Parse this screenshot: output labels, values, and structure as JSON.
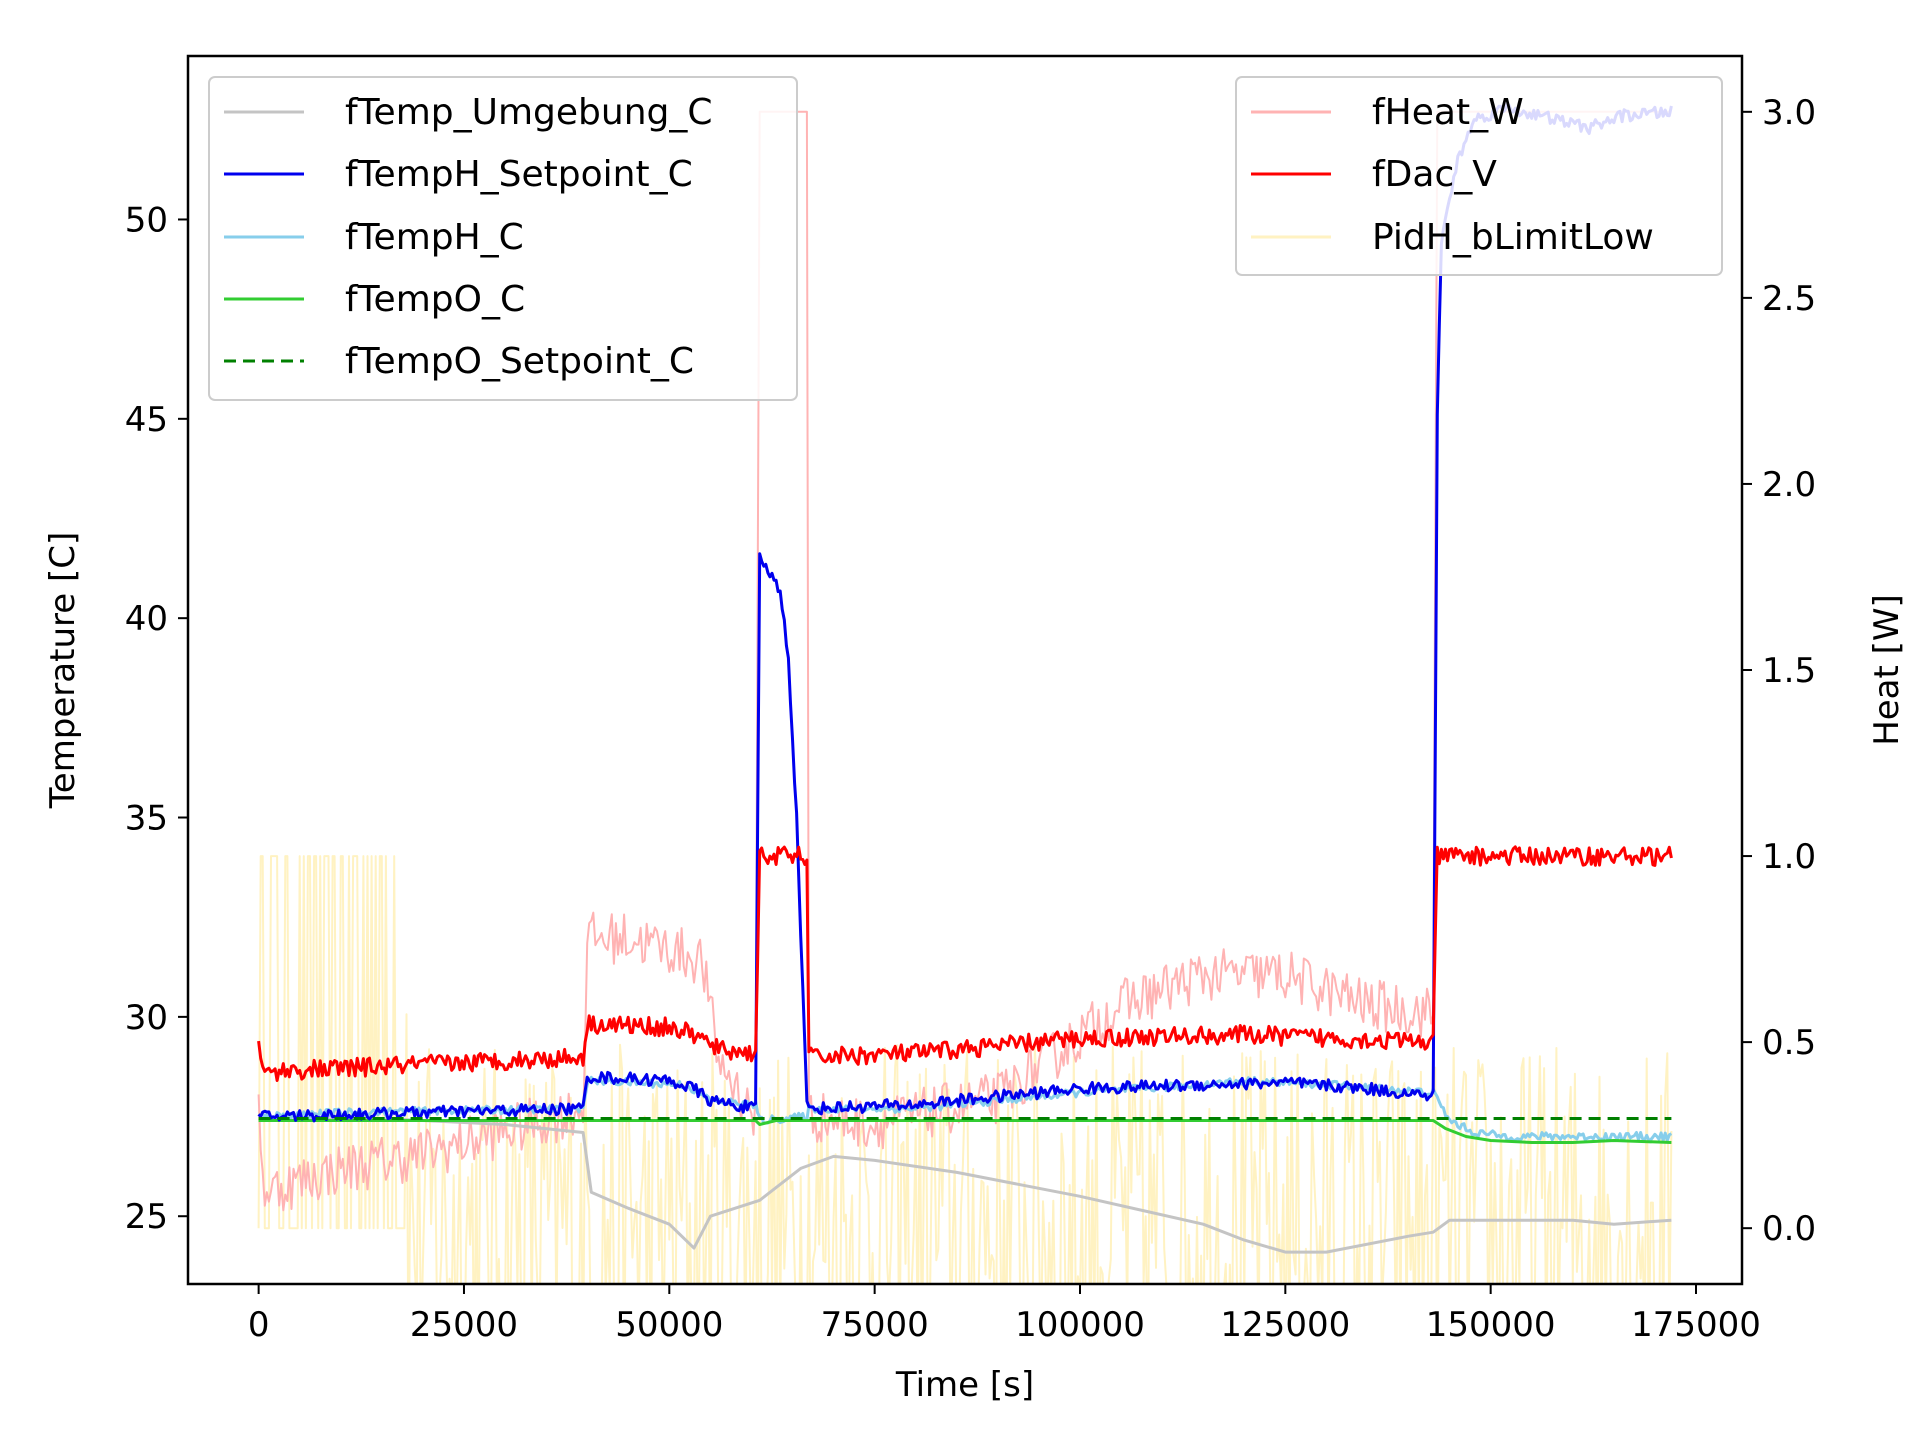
{
  "chart_data": {
    "type": "line",
    "title": "",
    "xlabel": "Time [s]",
    "ylabel_left": "Temperature [C]",
    "ylabel_right": "Heat [W]",
    "xlim": [
      -8600,
      180600
    ],
    "ylim_left": [
      23.3,
      54.1
    ],
    "ylim_right": [
      -0.15,
      3.15
    ],
    "grid": false,
    "x_ticks": [
      0,
      25000,
      50000,
      75000,
      100000,
      125000,
      150000,
      175000
    ],
    "x_tick_labels": [
      "0",
      "25000",
      "50000",
      "75000",
      "100000",
      "125000",
      "150000",
      "175000"
    ],
    "y_left_ticks": [
      25,
      30,
      35,
      40,
      45,
      50
    ],
    "y_left_tick_labels": [
      "25",
      "30",
      "35",
      "40",
      "45",
      "50"
    ],
    "y_right_ticks": [
      0.0,
      0.5,
      1.0,
      1.5,
      2.0,
      2.5,
      3.0
    ],
    "y_right_tick_labels": [
      "0.0",
      "0.5",
      "1.0",
      "1.5",
      "2.0",
      "2.5",
      "3.0"
    ],
    "legend_left": {
      "placement": "top-left",
      "entries": [
        {
          "label": "fTemp_Umgebung_C",
          "color": "#c4c4c4",
          "style": "solid"
        },
        {
          "label": "fTempH_Setpoint_C",
          "color": "#0000ee",
          "style": "solid"
        },
        {
          "label": "fTempH_C",
          "color": "#87ceeb",
          "style": "solid"
        },
        {
          "label": "fTempO_C",
          "color": "#32cd32",
          "style": "solid"
        },
        {
          "label": "fTempO_Setpoint_C",
          "color": "#008000",
          "style": "dashed"
        }
      ]
    },
    "legend_right": {
      "placement": "top-right",
      "entries": [
        {
          "label": "fHeat_W",
          "color": "#ffb3b3",
          "style": "solid"
        },
        {
          "label": "fDac_V",
          "color": "#ff0000",
          "style": "solid"
        },
        {
          "label": "PidH_bLimitLow",
          "color": "#fff2c2",
          "style": "solid"
        }
      ]
    },
    "series": [
      {
        "name": "PidH_bLimitLow",
        "axis": "right",
        "color": "#fff2c2",
        "width": 2,
        "dash": "",
        "noisy": true,
        "noise_amp": 0.5,
        "x": [
          0,
          18000,
          18001,
          172000
        ],
        "y": [
          0.5,
          0.5,
          0,
          0
        ]
      },
      {
        "name": "fHeat_W",
        "axis": "right",
        "color": "#ffb3b3",
        "width": 2,
        "dash": "",
        "noisy": true,
        "noise_amp": 0.07,
        "x": [
          0,
          500,
          1000,
          10000,
          20000,
          30000,
          39500,
          40000,
          45000,
          50000,
          54000,
          56000,
          60500,
          61000,
          66800,
          67000,
          75000,
          90000,
          105000,
          115000,
          125000,
          135000,
          143000,
          143500,
          172000
        ],
        "y": [
          0.4,
          0.12,
          0.1,
          0.16,
          0.2,
          0.26,
          0.32,
          0.78,
          0.78,
          0.75,
          0.72,
          0.45,
          0.3,
          3.0,
          3.0,
          0.3,
          0.28,
          0.35,
          0.6,
          0.68,
          0.68,
          0.6,
          0.58,
          3.0,
          3.0
        ]
      },
      {
        "name": "fTemp_Umgebung_C",
        "axis": "left",
        "color": "#c4c4c4",
        "width": 3,
        "dash": "",
        "noisy": false,
        "noise_amp": 0,
        "x": [
          0,
          15000,
          30000,
          39500,
          40500,
          45000,
          50000,
          53000,
          55000,
          61000,
          66000,
          70000,
          75000,
          85000,
          100000,
          115000,
          120000,
          125000,
          130000,
          140000,
          143000,
          145000,
          150000,
          160000,
          165000,
          172000
        ],
        "y": [
          27.4,
          27.45,
          27.3,
          27.1,
          25.6,
          25.2,
          24.8,
          24.2,
          25.0,
          25.4,
          26.2,
          26.5,
          26.4,
          26.1,
          25.5,
          24.8,
          24.4,
          24.1,
          24.1,
          24.5,
          24.6,
          24.9,
          24.9,
          24.9,
          24.8,
          24.9
        ]
      },
      {
        "name": "fTempH_C",
        "axis": "left",
        "color": "#87ceeb",
        "width": 3,
        "dash": "",
        "noisy": true,
        "noise_amp": 0.1,
        "x": [
          0,
          10000,
          39500,
          40000,
          52000,
          55000,
          60500,
          61000,
          66800,
          67000,
          80000,
          100000,
          115000,
          120000,
          130000,
          143000,
          145000,
          148000,
          152000,
          172000
        ],
        "y": [
          27.5,
          27.6,
          27.7,
          28.4,
          28.3,
          27.9,
          27.8,
          27.4,
          27.5,
          27.7,
          27.7,
          28.1,
          28.3,
          28.4,
          28.3,
          28.1,
          27.4,
          27.1,
          27.0,
          27.0
        ]
      },
      {
        "name": "fTempO_C",
        "axis": "left",
        "color": "#32cd32",
        "width": 3,
        "dash": "",
        "noisy": false,
        "noise_amp": 0,
        "x": [
          0,
          60500,
          61000,
          62000,
          63000,
          66800,
          67000,
          143000,
          144500,
          147000,
          150000,
          155000,
          160000,
          165000,
          172000
        ],
        "y": [
          27.4,
          27.4,
          27.3,
          27.35,
          27.4,
          27.4,
          27.4,
          27.4,
          27.2,
          27.0,
          26.9,
          26.85,
          26.85,
          26.9,
          26.85
        ]
      },
      {
        "name": "fTempH_Setpoint_C",
        "axis": "left",
        "color": "#0000ee",
        "width": 3,
        "dash": "",
        "noisy": true,
        "noise_amp": 0.15,
        "x": [
          0,
          20000,
          39500,
          40000,
          50000,
          53000,
          55000,
          60500,
          61000,
          62000,
          63500,
          64500,
          65500,
          66200,
          66800,
          67000,
          80000,
          100000,
          115000,
          125000,
          135000,
          143000,
          143500,
          144000,
          146000,
          148000,
          152000,
          156000,
          162000,
          166000,
          172000
        ],
        "y": [
          27.5,
          27.6,
          27.7,
          28.5,
          28.4,
          28.2,
          27.9,
          27.7,
          41.5,
          41.2,
          40.7,
          39.0,
          35.0,
          31.0,
          27.5,
          27.7,
          27.8,
          28.2,
          28.3,
          28.35,
          28.2,
          28.0,
          45.0,
          49.5,
          51.5,
          52.5,
          52.8,
          52.6,
          52.3,
          52.6,
          52.7
        ]
      },
      {
        "name": "fDac_V",
        "axis": "right",
        "color": "#ff0000",
        "width": 3,
        "dash": "",
        "noisy": true,
        "noise_amp": 0.025,
        "x": [
          0,
          200,
          500,
          39500,
          40000,
          50000,
          53000,
          56000,
          60500,
          61000,
          66800,
          67000,
          80000,
          100000,
          120000,
          143000,
          143500,
          172000
        ],
        "y": [
          0.52,
          0.45,
          0.42,
          0.46,
          0.55,
          0.54,
          0.52,
          0.48,
          0.47,
          1.0,
          1.0,
          0.46,
          0.47,
          0.51,
          0.52,
          0.5,
          1.0,
          1.0
        ]
      },
      {
        "name": "fTempO_Setpoint_C",
        "axis": "left",
        "color": "#008000",
        "width": 3,
        "dash": "12,7",
        "noisy": false,
        "noise_amp": 0,
        "x": [
          0,
          172000
        ],
        "y": [
          27.45,
          27.45
        ]
      }
    ]
  }
}
